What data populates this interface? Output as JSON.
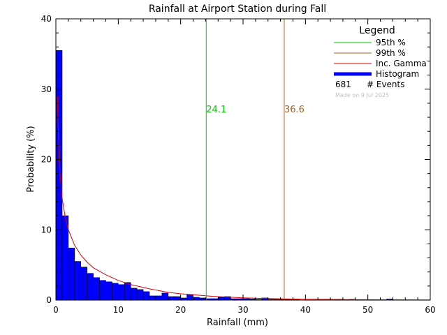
{
  "chart_data": {
    "type": "bar",
    "title": "Rainfall at Airport Station during Fall",
    "xlabel": "Rainfall (mm)",
    "ylabel": "Probability (%)",
    "xlim": [
      0,
      60
    ],
    "ylim": [
      0,
      40
    ],
    "xticks": [
      "0",
      "10",
      "20",
      "30",
      "40",
      "50",
      "60"
    ],
    "yticks": [
      "0",
      "10",
      "20",
      "30",
      "40"
    ],
    "bin_width": 1,
    "histogram": [
      35.5,
      12.0,
      7.4,
      5.5,
      4.7,
      3.8,
      3.2,
      2.8,
      2.6,
      2.4,
      2.2,
      2.5,
      1.7,
      1.5,
      1.2,
      0.6,
      0.6,
      1.0,
      0.5,
      0.5,
      0.3,
      0.8,
      0.4,
      0.3,
      0.2,
      0.2,
      0.4,
      0.5,
      0.2,
      0.2,
      0.2,
      0.15,
      0.1,
      0.3,
      0.1,
      0.1,
      0.1,
      0.1,
      0.1,
      0.0,
      0.0,
      0.0,
      0.0,
      0.1,
      0.0,
      0.1,
      0.0,
      0.1,
      0.0,
      0.0,
      0.0,
      0.0,
      0.0,
      0.15,
      0.0,
      0.0,
      0.0,
      0.0,
      0.0,
      0.0
    ],
    "percentiles": [
      {
        "name": "95th %",
        "value": 24.1,
        "label": "24.1",
        "color": "#00cc00"
      },
      {
        "name": "99th %",
        "value": 36.6,
        "label": "36.6",
        "color": "#b06020"
      }
    ],
    "gamma_curve": {
      "name": "Inc. Gamma",
      "color": "#dd0000",
      "x": [
        0.25,
        0.5,
        0.75,
        1,
        1.5,
        2,
        3,
        4,
        5,
        6,
        8,
        10,
        12,
        15,
        18,
        20,
        25,
        30,
        35,
        40,
        50,
        60
      ],
      "y": [
        29.0,
        20.0,
        17.0,
        14.5,
        11.8,
        10.0,
        7.8,
        6.4,
        5.4,
        4.6,
        3.6,
        2.8,
        2.2,
        1.6,
        1.1,
        0.9,
        0.55,
        0.33,
        0.2,
        0.12,
        0.05,
        0.02
      ]
    },
    "histogram_name": "Histogram",
    "histogram_color": "#0000ff",
    "legend": {
      "title": "Legend",
      "placement": "top-right",
      "entries": [
        "95th %",
        "99th %",
        "Inc. Gamma",
        "Histogram"
      ],
      "events_count": "681",
      "events_label": "# Events",
      "made_on": "Made on 9 Jul 2025"
    }
  }
}
